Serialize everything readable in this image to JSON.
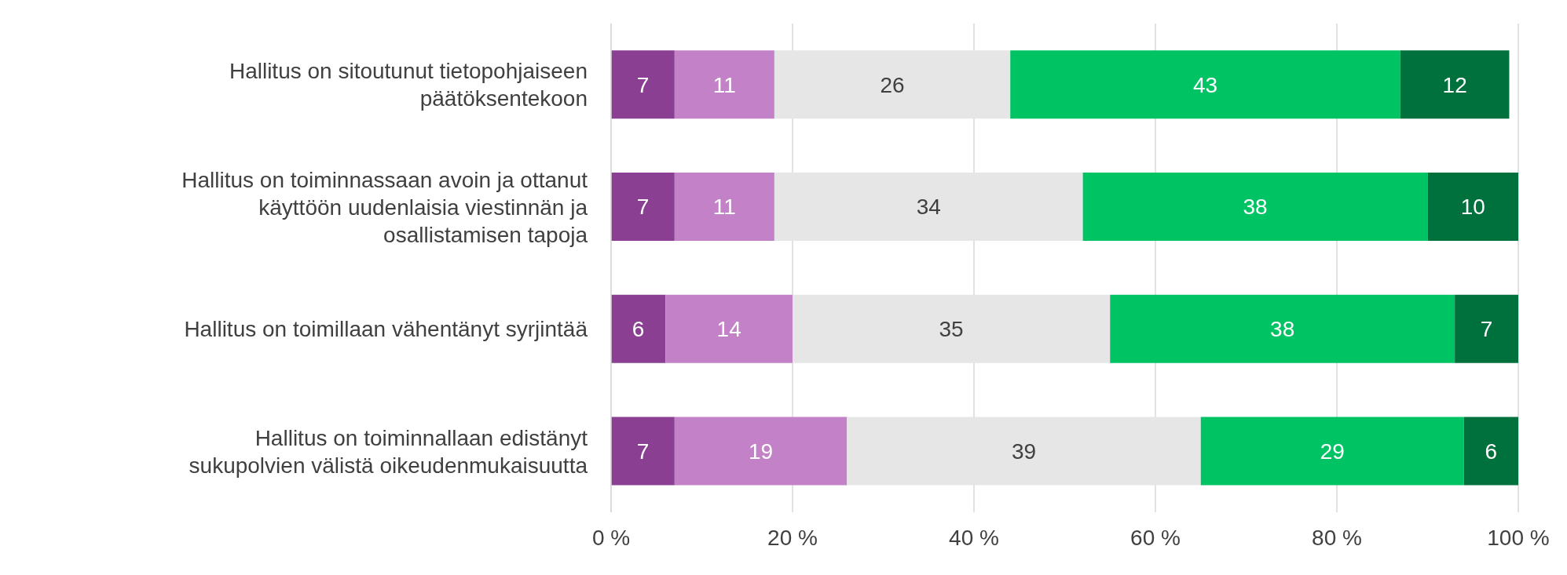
{
  "chart_data": {
    "type": "bar",
    "orientation": "horizontal",
    "stacked": true,
    "data_labels": true,
    "grid": "x",
    "legend": false,
    "categories": [
      "Hallitus on sitoutunut tietopohjaiseen päätöksentekoon",
      "Hallitus on toiminnassaan avoin ja ottanut käyttöön uudenlaisia viestinnän ja osallistamisen tapoja",
      "Hallitus on toimillaan vähentänyt syrjintää",
      "Hallitus on toiminnallaan edistänyt sukupolvien välistä oikeudenmukaisuutta"
    ],
    "series": [
      {
        "color": "#8b3f93",
        "values": [
          7,
          7,
          6,
          7
        ]
      },
      {
        "color": "#c382c8",
        "values": [
          11,
          11,
          14,
          19
        ]
      },
      {
        "color": "#e6e6e6",
        "values": [
          26,
          34,
          35,
          39
        ]
      },
      {
        "color": "#00c464",
        "values": [
          43,
          38,
          38,
          29
        ]
      },
      {
        "color": "#00703c",
        "values": [
          12,
          10,
          7,
          6
        ]
      }
    ],
    "xlim": [
      0,
      100
    ],
    "xticks": [
      {
        "value": 0,
        "label": "0 %"
      },
      {
        "value": 20,
        "label": "20 %"
      },
      {
        "value": 40,
        "label": "40 %"
      },
      {
        "value": 60,
        "label": "60 %"
      },
      {
        "value": 80,
        "label": "80 %"
      },
      {
        "value": 100,
        "label": "100 %"
      }
    ]
  }
}
